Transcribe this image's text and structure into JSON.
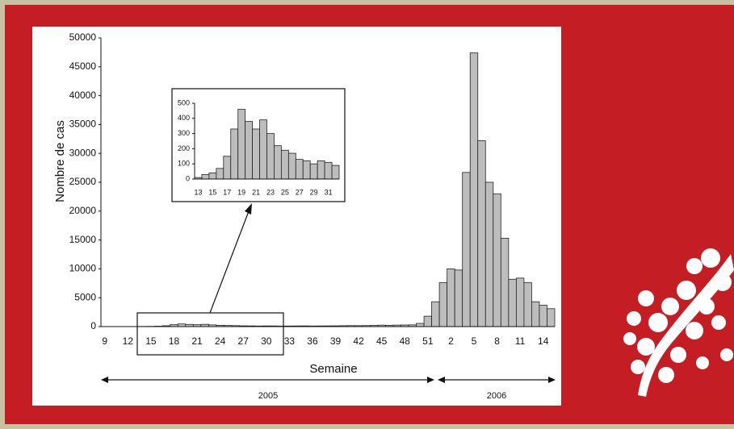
{
  "chart_data": [
    {
      "type": "bar",
      "x_label": "Semaine",
      "y_label": "Nombre de cas",
      "annotations": [
        "2005",
        "2006"
      ],
      "categories": [
        "9",
        null,
        null,
        "12",
        null,
        null,
        "15",
        null,
        null,
        "18",
        null,
        null,
        "21",
        null,
        null,
        "24",
        null,
        null,
        "27",
        null,
        null,
        "30",
        null,
        null,
        "33",
        null,
        null,
        "36",
        null,
        null,
        "39",
        null,
        null,
        "42",
        null,
        null,
        "45",
        null,
        null,
        "48",
        null,
        null,
        "51",
        null,
        null,
        "2",
        null,
        null,
        "5",
        null,
        null,
        "8",
        null,
        null,
        "11",
        null,
        null,
        "14",
        null
      ],
      "values": [
        0,
        0,
        0,
        0,
        10,
        30,
        40,
        70,
        150,
        330,
        460,
        380,
        330,
        390,
        300,
        220,
        190,
        170,
        130,
        120,
        100,
        120,
        110,
        90,
        100,
        110,
        120,
        100,
        110,
        120,
        130,
        150,
        170,
        160,
        180,
        200,
        250,
        230,
        260,
        280,
        300,
        550,
        1800,
        4300,
        7600,
        10000,
        9800,
        26700,
        47400,
        32200,
        25000,
        23000,
        15300,
        8200,
        8400,
        7600,
        4300,
        3700,
        3100
      ],
      "color": "#bdbdbd",
      "ylim": [
        0,
        50000
      ],
      "yticks": [
        0,
        5000,
        10000,
        15000,
        20000,
        25000,
        30000,
        35000,
        40000,
        45000,
        50000
      ]
    },
    {
      "type": "bar",
      "categories": [
        "13",
        null,
        "15",
        null,
        "17",
        null,
        "19",
        null,
        "21",
        null,
        "23",
        null,
        "25",
        null,
        "27",
        null,
        "29",
        null,
        "31",
        null
      ],
      "values": [
        10,
        30,
        40,
        70,
        150,
        330,
        460,
        380,
        330,
        390,
        300,
        220,
        190,
        170,
        130,
        120,
        100,
        120,
        110,
        90
      ],
      "color": "#bdbdbd",
      "ylim": [
        0,
        500
      ],
      "yticks": [
        0,
        100,
        200,
        300,
        400,
        500
      ]
    }
  ]
}
